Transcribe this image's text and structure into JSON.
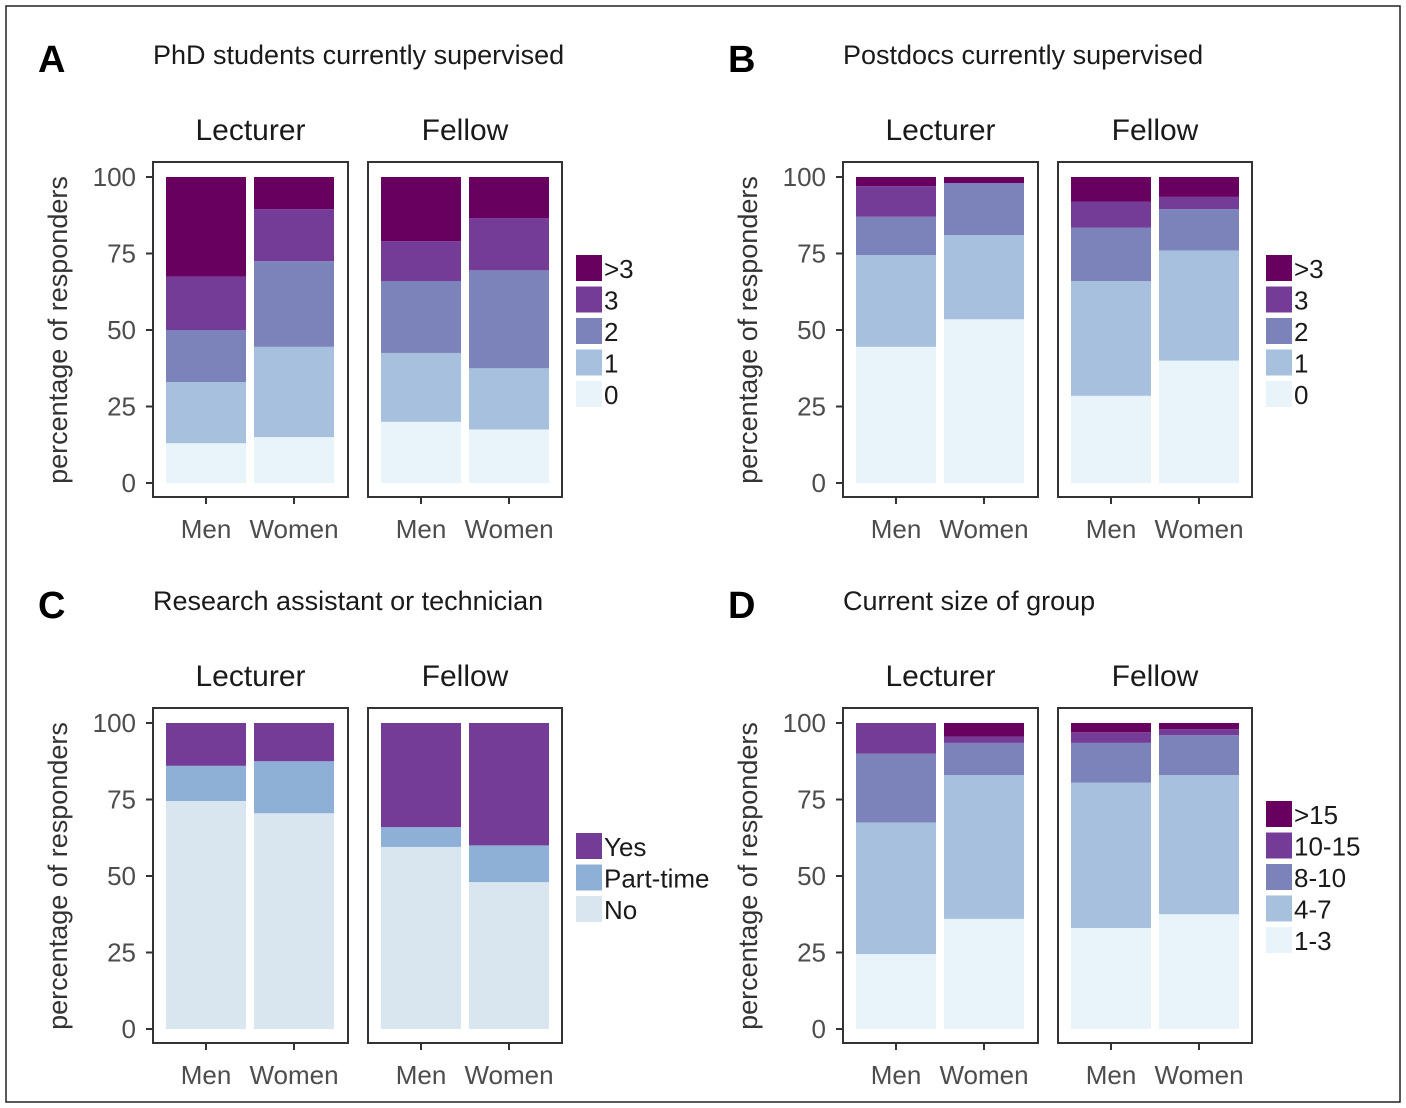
{
  "chart_data": [
    {
      "type": "bar",
      "panel_letter": "A",
      "title": "PhD students currently supervised",
      "ylabel": "percentage of responders",
      "ylim": [
        0,
        100
      ],
      "yticks": [
        "0",
        "25",
        "50",
        "75",
        "100"
      ],
      "facets": [
        "Lecturer",
        "Fellow"
      ],
      "categories": [
        "Men",
        "Women"
      ],
      "stacked": true,
      "legend": {
        "position": "right",
        "entries": [
          ">3",
          "3",
          "2",
          "1",
          "0"
        ]
      },
      "colors": {
        "0": "#e8f4f9",
        "1": "#a6c0dd",
        "2": "#7b83ba",
        "3": "#743c97",
        ">3": "#68005f"
      },
      "series": [
        {
          "name": "0",
          "values": {
            "Lecturer": [
              13,
              15
            ],
            "Fellow": [
              20,
              17.5
            ]
          }
        },
        {
          "name": "1",
          "values": {
            "Lecturer": [
              20,
              29.5
            ],
            "Fellow": [
              22.5,
              20
            ]
          }
        },
        {
          "name": "2",
          "values": {
            "Lecturer": [
              17,
              28
            ],
            "Fellow": [
              23.5,
              32
            ]
          }
        },
        {
          "name": "3",
          "values": {
            "Lecturer": [
              17.5,
              17
            ],
            "Fellow": [
              13,
              17
            ]
          }
        },
        {
          "name": ">3",
          "values": {
            "Lecturer": [
              32.5,
              10.5
            ],
            "Fellow": [
              21,
              13.5
            ]
          }
        }
      ]
    },
    {
      "type": "bar",
      "panel_letter": "B",
      "title": "Postdocs currently supervised",
      "ylabel": "percentage of responders",
      "ylim": [
        0,
        100
      ],
      "yticks": [
        "0",
        "25",
        "50",
        "75",
        "100"
      ],
      "facets": [
        "Lecturer",
        "Fellow"
      ],
      "categories": [
        "Men",
        "Women"
      ],
      "stacked": true,
      "legend": {
        "position": "right",
        "entries": [
          ">3",
          "3",
          "2",
          "1",
          "0"
        ]
      },
      "colors": {
        "0": "#e8f4f9",
        "1": "#a6c0dd",
        "2": "#7b83ba",
        "3": "#743c97",
        ">3": "#68005f"
      },
      "series": [
        {
          "name": "0",
          "values": {
            "Lecturer": [
              44.5,
              53.5
            ],
            "Fellow": [
              28.5,
              40
            ]
          }
        },
        {
          "name": "1",
          "values": {
            "Lecturer": [
              30,
              27.5
            ],
            "Fellow": [
              37.5,
              36
            ]
          }
        },
        {
          "name": "2",
          "values": {
            "Lecturer": [
              12.5,
              17
            ],
            "Fellow": [
              17.5,
              13.5
            ]
          }
        },
        {
          "name": "3",
          "values": {
            "Lecturer": [
              10,
              0
            ],
            "Fellow": [
              8.5,
              4
            ]
          }
        },
        {
          "name": ">3",
          "values": {
            "Lecturer": [
              3,
              2
            ],
            "Fellow": [
              8,
              6.5
            ]
          }
        }
      ]
    },
    {
      "type": "bar",
      "panel_letter": "C",
      "title": "Research assistant or technician",
      "ylabel": "percentage of responders",
      "ylim": [
        0,
        100
      ],
      "yticks": [
        "0",
        "25",
        "50",
        "75",
        "100"
      ],
      "facets": [
        "Lecturer",
        "Fellow"
      ],
      "categories": [
        "Men",
        "Women"
      ],
      "stacked": true,
      "legend": {
        "position": "right",
        "entries": [
          "Yes",
          "Part-time",
          "No"
        ]
      },
      "colors": {
        "No": "#d9e6f0",
        "Part-time": "#8fb0d6",
        "Yes": "#743c97"
      },
      "series": [
        {
          "name": "No",
          "values": {
            "Lecturer": [
              74.5,
              70.5
            ],
            "Fellow": [
              59.5,
              48
            ]
          }
        },
        {
          "name": "Part-time",
          "values": {
            "Lecturer": [
              11.5,
              17
            ],
            "Fellow": [
              6.5,
              12
            ]
          }
        },
        {
          "name": "Yes",
          "values": {
            "Lecturer": [
              14,
              12.5
            ],
            "Fellow": [
              34,
              40
            ]
          }
        }
      ]
    },
    {
      "type": "bar",
      "panel_letter": "D",
      "title": "Current size of group",
      "ylabel": "percentage of responders",
      "ylim": [
        0,
        100
      ],
      "yticks": [
        "0",
        "25",
        "50",
        "75",
        "100"
      ],
      "facets": [
        "Lecturer",
        "Fellow"
      ],
      "categories": [
        "Men",
        "Women"
      ],
      "stacked": true,
      "legend": {
        "position": "right",
        "entries": [
          ">15",
          "10-15",
          "8-10",
          "4-7",
          "1-3"
        ]
      },
      "colors": {
        "1-3": "#e8f4f9",
        "4-7": "#a6c0dd",
        "8-10": "#7b83ba",
        "10-15": "#743c97",
        ">15": "#68005f"
      },
      "series": [
        {
          "name": "1-3",
          "values": {
            "Lecturer": [
              24.5,
              36
            ],
            "Fellow": [
              33,
              37.5
            ]
          }
        },
        {
          "name": "4-7",
          "values": {
            "Lecturer": [
              43,
              47
            ],
            "Fellow": [
              47.5,
              45.5
            ]
          }
        },
        {
          "name": "8-10",
          "values": {
            "Lecturer": [
              22.5,
              10.5
            ],
            "Fellow": [
              13,
              13
            ]
          }
        },
        {
          "name": "10-15",
          "values": {
            "Lecturer": [
              10,
              2
            ],
            "Fellow": [
              3.5,
              2
            ]
          }
        },
        {
          "name": ">15",
          "values": {
            "Lecturer": [
              0,
              4.5
            ],
            "Fellow": [
              3,
              2
            ]
          }
        }
      ]
    }
  ]
}
